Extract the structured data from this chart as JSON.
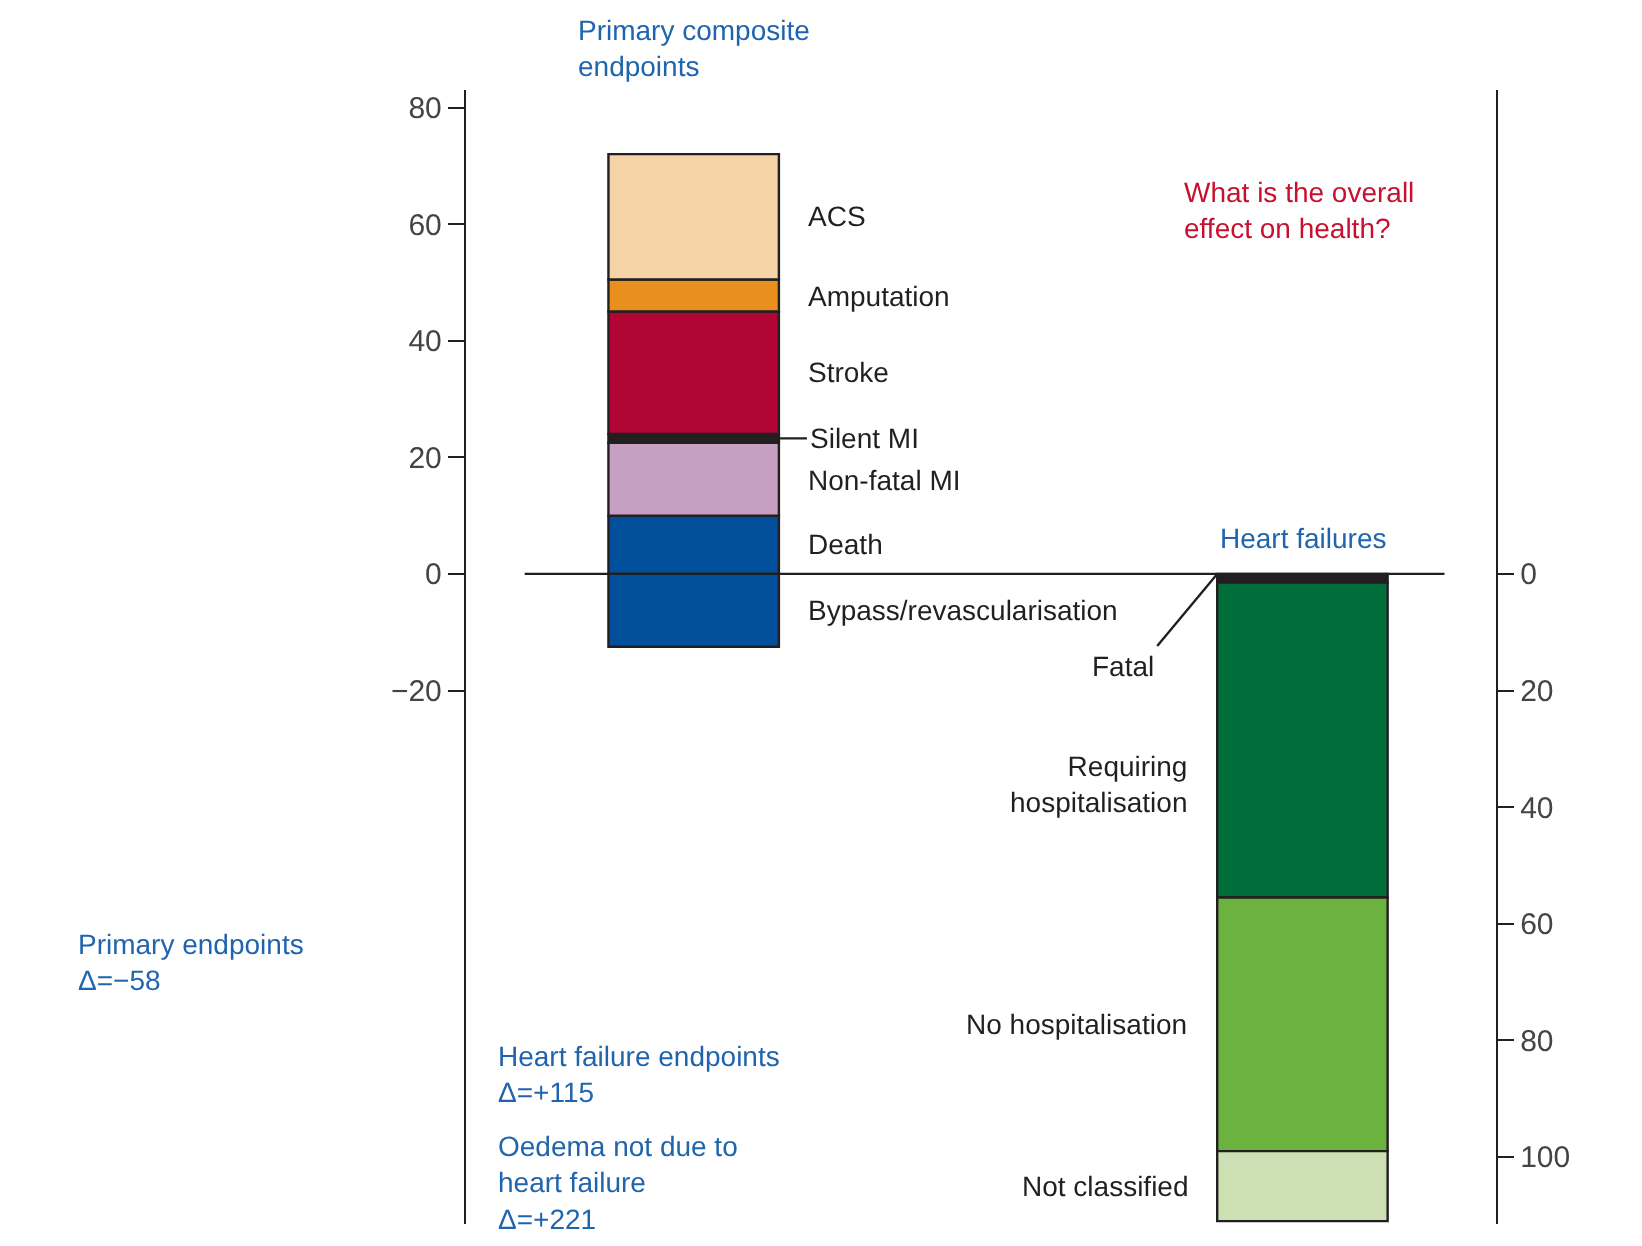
{
  "chart_data": {
    "type": "bar",
    "stacked": true,
    "categories": [
      "Primary composite endpoints",
      "Heart failures"
    ],
    "series": [
      {
        "name": "Bypass/revascularisation",
        "color": "#02509c",
        "values": [
          -12.5,
          null
        ]
      },
      {
        "name": "Death",
        "color": "#02509c",
        "values": [
          10,
          null
        ]
      },
      {
        "name": "Non-fatal MI",
        "color": "#c69fc2",
        "values": [
          12.5,
          null
        ]
      },
      {
        "name": "Silent MI",
        "color": "#231f20",
        "values": [
          1.5,
          null
        ]
      },
      {
        "name": "Stroke",
        "color": "#b00535",
        "values": [
          21,
          null
        ]
      },
      {
        "name": "Amputation",
        "color": "#e8901e",
        "values": [
          5.5,
          null
        ]
      },
      {
        "name": "ACS",
        "color": "#f6d3a6",
        "values": [
          21.5,
          null
        ]
      },
      {
        "name": "Fatal",
        "color": "#231f20",
        "values": [
          null,
          1.5
        ],
        "axis": "y2"
      },
      {
        "name": "Requiring hospitalisation",
        "color": "#006e3b",
        "values": [
          null,
          54
        ],
        "axis": "y2"
      },
      {
        "name": "No hospitalisation",
        "color": "#6cb23e",
        "values": [
          null,
          43.5
        ],
        "axis": "y2"
      },
      {
        "name": "Not classified",
        "color": "#cce0b4",
        "values": [
          null,
          12
        ],
        "axis": "y2"
      }
    ],
    "ylim": [
      -111.5,
      83
    ],
    "yticks": [
      -20,
      0,
      20,
      40,
      60,
      80
    ],
    "y2lim": [
      111.5,
      -83
    ],
    "y2ticks": [
      0,
      20,
      40,
      60,
      80,
      100
    ],
    "ref_lines": [
      {
        "axis": "y",
        "value": 0,
        "color": "#231f20"
      }
    ],
    "annotations": [
      "What is the overall\neffect on health?",
      "Primary endpoints\nΔ=−58",
      "Heart failure endpoints\nΔ=+115",
      "Oedema not due to\nheart failure\nΔ=+221"
    ],
    "tick_labels": true
  }
}
